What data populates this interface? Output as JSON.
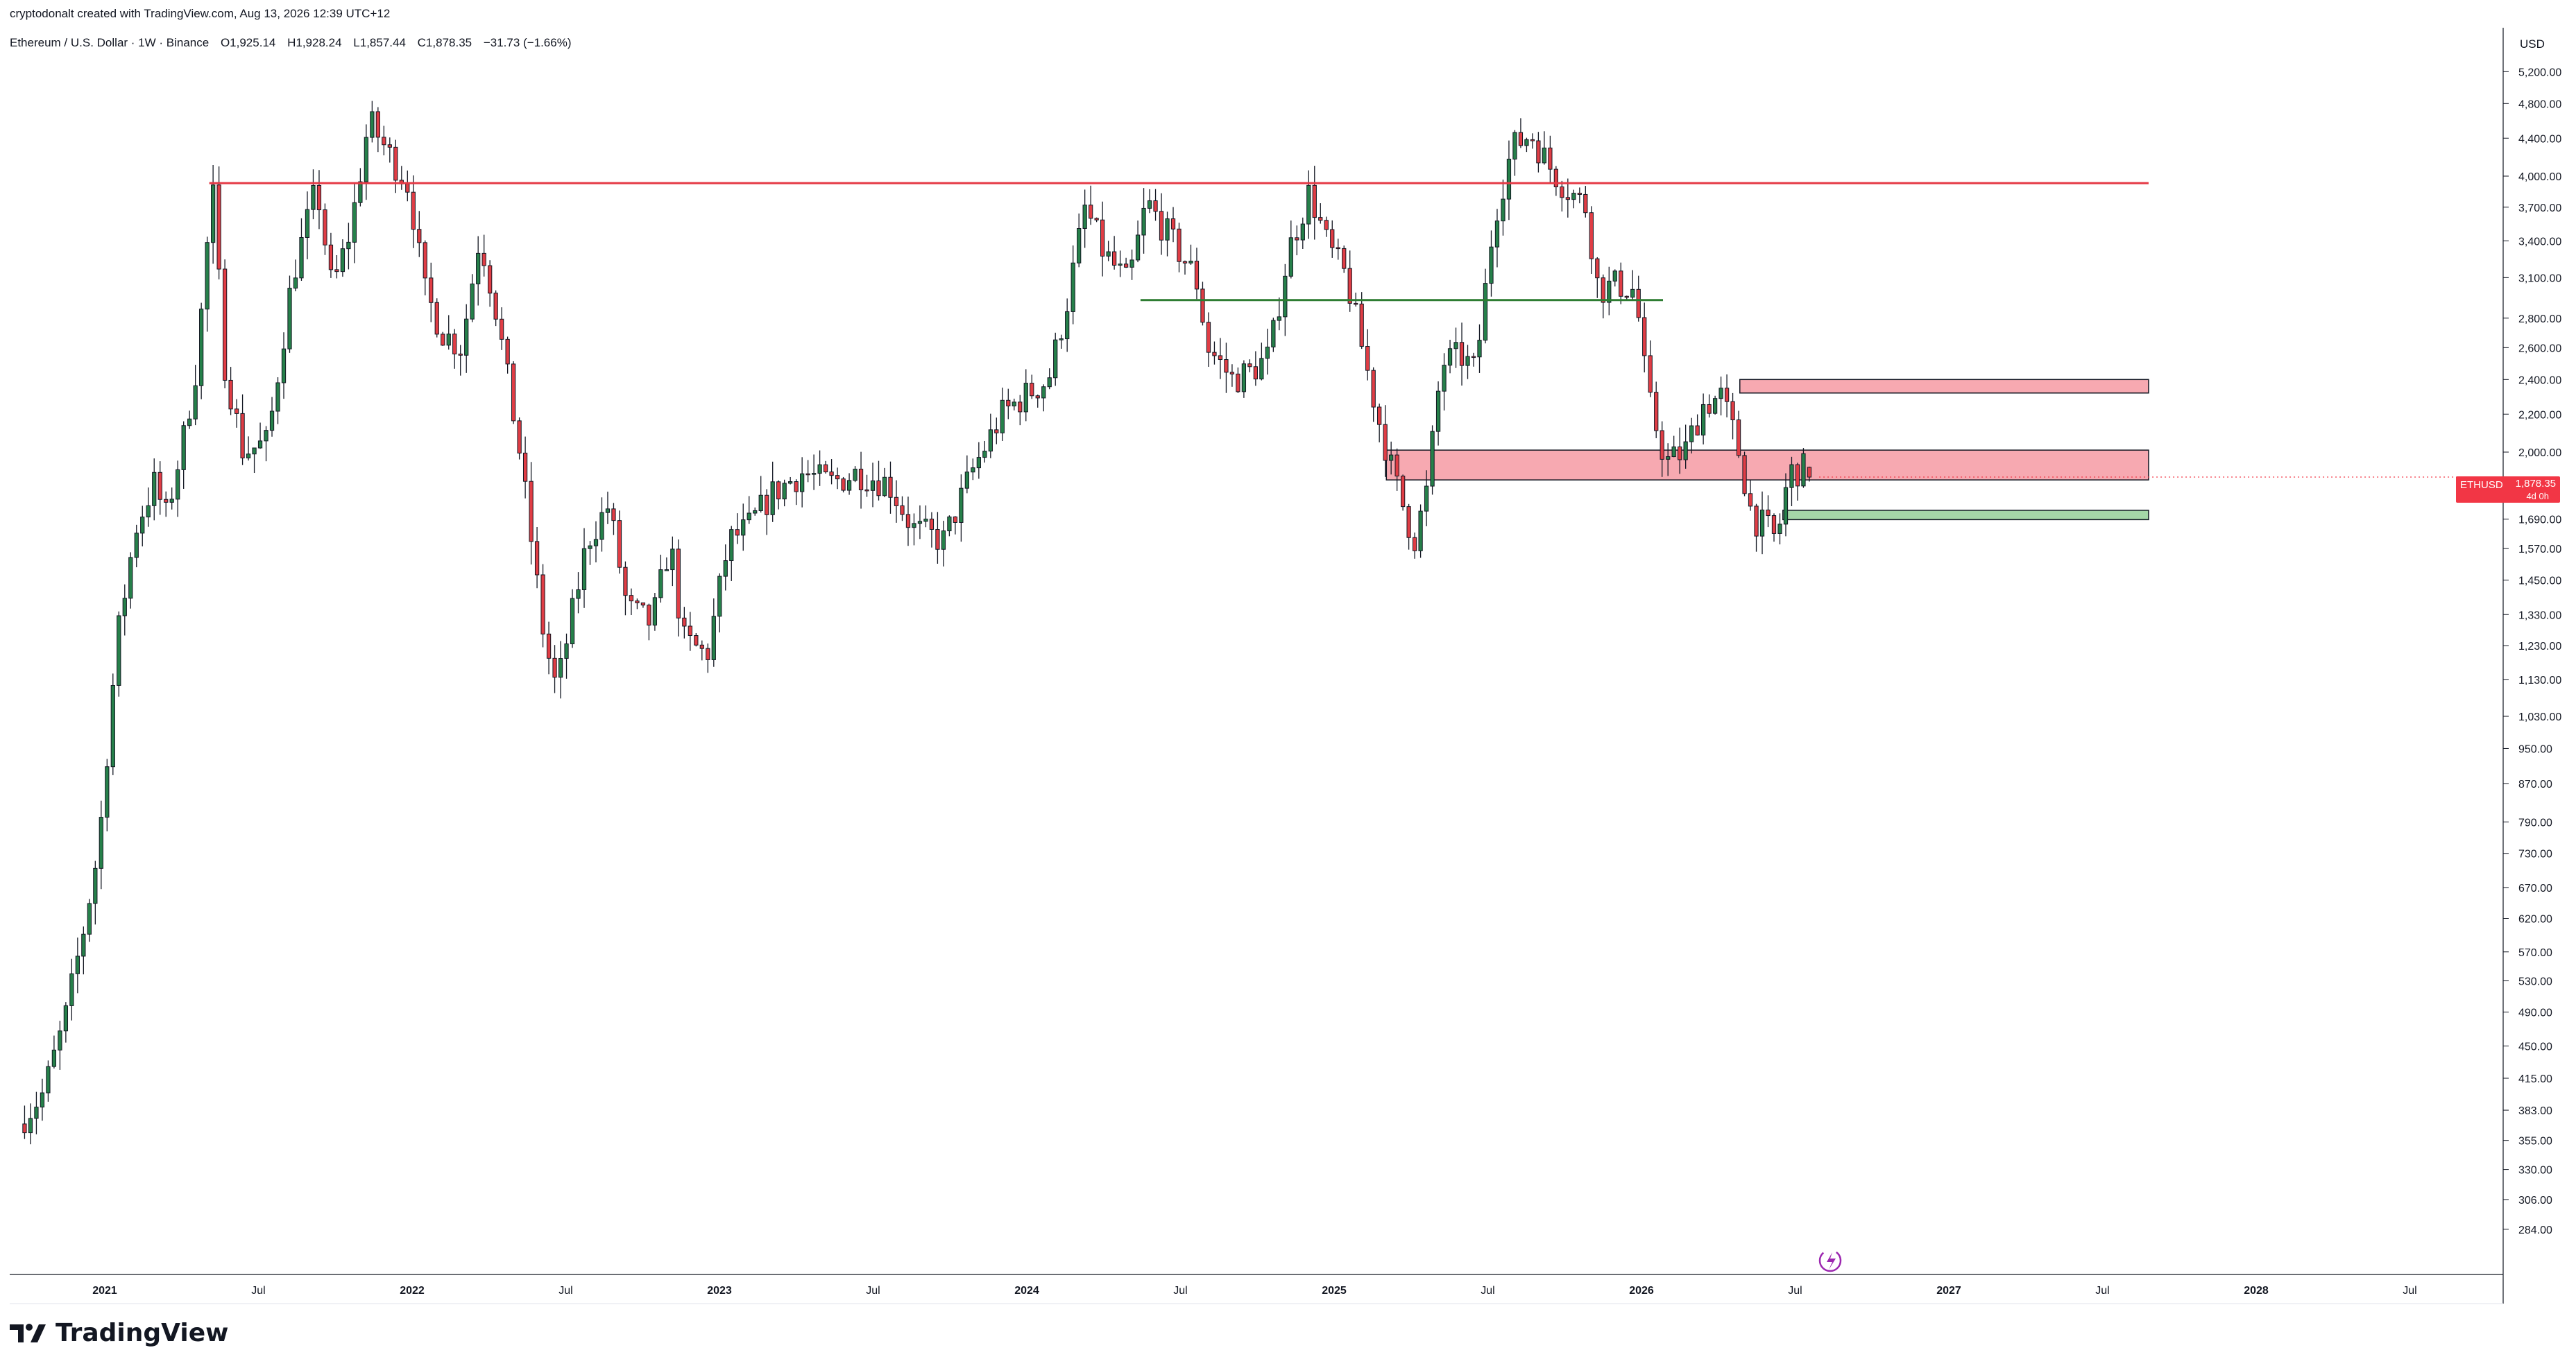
{
  "header": {
    "created_by": "cryptodonalt created with TradingView.com, Aug 13, 2026 12:39 UTC+12",
    "symbol": "Ethereum / U.S. Dollar · 1W · Binance",
    "open": "O1,925.14",
    "high": "H1,928.24",
    "low": "L1,857.44",
    "close": "C1,878.35",
    "change": "−31.73 (−1.66%)"
  },
  "brand": {
    "name": "TradingView"
  },
  "axis": {
    "currency": "USD",
    "price_ticks": [
      "5,200.00",
      "4,800.00",
      "4,400.00",
      "4,000.00",
      "3,700.00",
      "3,400.00",
      "3,100.00",
      "2,800.00",
      "2,600.00",
      "2,400.00",
      "2,200.00",
      "2,000.00",
      "1,690.00",
      "1,570.00",
      "1,450.00",
      "1,330.00",
      "1,230.00",
      "1,130.00",
      "1,030.00",
      "950.00",
      "870.00",
      "790.00",
      "730.00",
      "670.00",
      "620.00",
      "570.00",
      "530.00",
      "490.00",
      "450.00",
      "415.00",
      "383.00",
      "355.00",
      "330.00",
      "306.00",
      "284.00"
    ],
    "time_ticks": [
      {
        "label": "2021",
        "t": 2021.0,
        "bold": true
      },
      {
        "label": "Jul",
        "t": 2021.5,
        "bold": false
      },
      {
        "label": "2022",
        "t": 2022.0,
        "bold": true
      },
      {
        "label": "Jul",
        "t": 2022.5,
        "bold": false
      },
      {
        "label": "2023",
        "t": 2023.0,
        "bold": true
      },
      {
        "label": "Jul",
        "t": 2023.5,
        "bold": false
      },
      {
        "label": "2024",
        "t": 2024.0,
        "bold": true
      },
      {
        "label": "Jul",
        "t": 2024.5,
        "bold": false
      },
      {
        "label": "2025",
        "t": 2025.0,
        "bold": true
      },
      {
        "label": "Jul",
        "t": 2025.5,
        "bold": false
      },
      {
        "label": "2026",
        "t": 2026.0,
        "bold": true
      },
      {
        "label": "Jul",
        "t": 2026.5,
        "bold": false
      },
      {
        "label": "2027",
        "t": 2027.0,
        "bold": true
      },
      {
        "label": "Jul",
        "t": 2027.5,
        "bold": false
      },
      {
        "label": "2028",
        "t": 2028.0,
        "bold": true
      },
      {
        "label": "Jul",
        "t": 2028.5,
        "bold": false
      }
    ]
  },
  "price_badge": {
    "symbol": "ETHUSD",
    "price": "1,878.35",
    "countdown": "4d 0h"
  },
  "colors": {
    "up": "#26804a",
    "down": "#e03d45",
    "resistance": "#e53945",
    "support": "#2e7d32",
    "zone_red": "#f7a9b1",
    "zone_green": "#a5d6a7"
  },
  "chart_data": {
    "type": "candlestick",
    "title": "Ethereum / U.S. Dollar · 1W · Binance",
    "xlabel": "",
    "ylabel": "USD",
    "ylim": [
      270,
      5500
    ],
    "y_scale": "log",
    "x_range": [
      2020.7,
      2028.8
    ],
    "grid": false,
    "anchors": [
      {
        "t": 2020.72,
        "p": 370
      },
      {
        "t": 2020.8,
        "p": 400
      },
      {
        "t": 2020.87,
        "p": 480
      },
      {
        "t": 2020.93,
        "p": 600
      },
      {
        "t": 2020.98,
        "p": 740
      },
      {
        "t": 2021.04,
        "p": 1250
      },
      {
        "t": 2021.1,
        "p": 1650
      },
      {
        "t": 2021.16,
        "p": 1850
      },
      {
        "t": 2021.2,
        "p": 1700
      },
      {
        "t": 2021.26,
        "p": 2100
      },
      {
        "t": 2021.3,
        "p": 2500
      },
      {
        "t": 2021.35,
        "p": 3900
      },
      {
        "t": 2021.39,
        "p": 2500
      },
      {
        "t": 2021.45,
        "p": 2000
      },
      {
        "t": 2021.53,
        "p": 2050
      },
      {
        "t": 2021.61,
        "p": 3100
      },
      {
        "t": 2021.69,
        "p": 3900
      },
      {
        "t": 2021.74,
        "p": 3000
      },
      {
        "t": 2021.8,
        "p": 3500
      },
      {
        "t": 2021.86,
        "p": 4600
      },
      {
        "t": 2021.93,
        "p": 4200
      },
      {
        "t": 2021.99,
        "p": 3900
      },
      {
        "t": 2022.04,
        "p": 3000
      },
      {
        "t": 2022.1,
        "p": 2700
      },
      {
        "t": 2022.16,
        "p": 2600
      },
      {
        "t": 2022.22,
        "p": 3450
      },
      {
        "t": 2022.27,
        "p": 2900
      },
      {
        "t": 2022.35,
        "p": 2000
      },
      {
        "t": 2022.43,
        "p": 1250
      },
      {
        "t": 2022.47,
        "p": 1100
      },
      {
        "t": 2022.57,
        "p": 1600
      },
      {
        "t": 2022.64,
        "p": 1750
      },
      {
        "t": 2022.7,
        "p": 1350
      },
      {
        "t": 2022.78,
        "p": 1300
      },
      {
        "t": 2022.84,
        "p": 1600
      },
      {
        "t": 2022.88,
        "p": 1250
      },
      {
        "t": 2022.96,
        "p": 1200
      },
      {
        "t": 2023.03,
        "p": 1600
      },
      {
        "t": 2023.09,
        "p": 1650
      },
      {
        "t": 2023.17,
        "p": 1800
      },
      {
        "t": 2023.27,
        "p": 1900
      },
      {
        "t": 2023.36,
        "p": 1850
      },
      {
        "t": 2023.45,
        "p": 1900
      },
      {
        "t": 2023.55,
        "p": 1850
      },
      {
        "t": 2023.63,
        "p": 1650
      },
      {
        "t": 2023.73,
        "p": 1600
      },
      {
        "t": 2023.82,
        "p": 1900
      },
      {
        "t": 2023.92,
        "p": 2200
      },
      {
        "t": 2023.99,
        "p": 2300
      },
      {
        "t": 2024.07,
        "p": 2400
      },
      {
        "t": 2024.13,
        "p": 2900
      },
      {
        "t": 2024.19,
        "p": 3700
      },
      {
        "t": 2024.25,
        "p": 3300
      },
      {
        "t": 2024.33,
        "p": 3050
      },
      {
        "t": 2024.39,
        "p": 3750
      },
      {
        "t": 2024.46,
        "p": 3450
      },
      {
        "t": 2024.55,
        "p": 3100
      },
      {
        "t": 2024.59,
        "p": 2600
      },
      {
        "t": 2024.67,
        "p": 2400
      },
      {
        "t": 2024.73,
        "p": 2450
      },
      {
        "t": 2024.79,
        "p": 2550
      },
      {
        "t": 2024.85,
        "p": 3300
      },
      {
        "t": 2024.92,
        "p": 3850
      },
      {
        "t": 2024.98,
        "p": 3350
      },
      {
        "t": 2025.04,
        "p": 3100
      },
      {
        "t": 2025.08,
        "p": 2700
      },
      {
        "t": 2025.14,
        "p": 2200
      },
      {
        "t": 2025.19,
        "p": 1900
      },
      {
        "t": 2025.26,
        "p": 1600
      },
      {
        "t": 2025.3,
        "p": 1800
      },
      {
        "t": 2025.35,
        "p": 2500
      },
      {
        "t": 2025.41,
        "p": 2550
      },
      {
        "t": 2025.46,
        "p": 2450
      },
      {
        "t": 2025.52,
        "p": 3600
      },
      {
        "t": 2025.58,
        "p": 4300
      },
      {
        "t": 2025.64,
        "p": 4450
      },
      {
        "t": 2025.7,
        "p": 4100
      },
      {
        "t": 2025.75,
        "p": 3900
      },
      {
        "t": 2025.82,
        "p": 3700
      },
      {
        "t": 2025.86,
        "p": 3000
      },
      {
        "t": 2025.92,
        "p": 3050
      },
      {
        "t": 2025.98,
        "p": 3000
      },
      {
        "t": 2026.02,
        "p": 2300
      },
      {
        "t": 2026.08,
        "p": 1950
      },
      {
        "t": 2026.14,
        "p": 2000
      },
      {
        "t": 2026.2,
        "p": 2250
      },
      {
        "t": 2026.26,
        "p": 2300
      },
      {
        "t": 2026.31,
        "p": 2050
      },
      {
        "t": 2026.36,
        "p": 1700
      },
      {
        "t": 2026.41,
        "p": 1650
      },
      {
        "t": 2026.44,
        "p": 1600
      },
      {
        "t": 2026.48,
        "p": 1900
      },
      {
        "t": 2026.53,
        "p": 1920
      },
      {
        "t": 2026.56,
        "p": 1878
      }
    ],
    "lines": [
      {
        "name": "resistance",
        "p": 3930,
        "t0": 2021.34,
        "t1": 2027.65,
        "color": "#e53945"
      },
      {
        "name": "support",
        "p": 2930,
        "t0": 2024.37,
        "t1": 2026.07,
        "color": "#2e7d32"
      }
    ],
    "zones": [
      {
        "name": "upper-red-zone",
        "p0": 2320,
        "p1": 2400,
        "t0": 2026.32,
        "t1": 2027.65,
        "fill": "#f7a9b1"
      },
      {
        "name": "middle-red-zone",
        "p0": 1865,
        "p1": 2010,
        "t0": 2025.17,
        "t1": 2027.65,
        "fill": "#f7a9b1"
      },
      {
        "name": "lower-green-zone",
        "p0": 1688,
        "p1": 1728,
        "t0": 2026.46,
        "t1": 2027.65,
        "fill": "#a5d6a7"
      }
    ],
    "last": {
      "open": 1925.14,
      "high": 1928.24,
      "low": 1857.44,
      "close": 1878.35
    }
  }
}
